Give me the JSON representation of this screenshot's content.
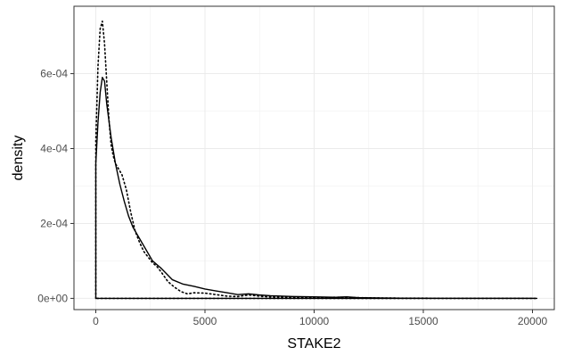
{
  "chart_data": {
    "type": "line",
    "title": "",
    "xlabel": "STAKE2",
    "ylabel": "density",
    "xlim": [
      -1000,
      21000
    ],
    "ylim": [
      -3e-05,
      0.00078
    ],
    "grid": true,
    "x_ticks": [
      0,
      5000,
      10000,
      15000,
      20000
    ],
    "x_tick_labels": [
      "0",
      "5000",
      "10000",
      "15000",
      "20000"
    ],
    "y_ticks": [
      0,
      0.0002,
      0.0004,
      0.0006
    ],
    "y_tick_labels": [
      "0e+00",
      "2e-04",
      "4e-04",
      "6e-04"
    ],
    "series": [
      {
        "style": "solid",
        "color": "#000000",
        "x": [
          0,
          0,
          100,
          200,
          300,
          400,
          500,
          700,
          900,
          1100,
          1300,
          1500,
          1700,
          2000,
          2300,
          2600,
          3000,
          3500,
          4000,
          4500,
          5000,
          5500,
          6000,
          6500,
          7000,
          7200,
          7500,
          8000,
          9000,
          10000,
          11000,
          11500,
          12000,
          13000,
          14000,
          16000,
          18000,
          20000,
          20200,
          20200,
          0
        ],
        "y": [
          0,
          0.00036,
          0.00047,
          0.00055,
          0.00059,
          0.00058,
          0.00052,
          0.00043,
          0.00036,
          0.000305,
          0.00026,
          0.00022,
          0.00019,
          0.00016,
          0.00013,
          0.0001,
          8e-05,
          5e-05,
          3.8e-05,
          3.2e-05,
          2.5e-05,
          2e-05,
          1.5e-05,
          1e-05,
          1.2e-05,
          1.1e-05,
          9e-06,
          7e-06,
          5e-06,
          4e-06,
          3e-06,
          4e-06,
          2e-06,
          1e-06,
          5e-07,
          3e-07,
          2e-07,
          1e-07,
          0,
          0,
          0
        ]
      },
      {
        "style": "dotted",
        "color": "#000000",
        "x": [
          0,
          0,
          100,
          200,
          300,
          400,
          500,
          600,
          700,
          800,
          900,
          1000,
          1200,
          1400,
          1600,
          1800,
          2000,
          2200,
          2400,
          2600,
          2800,
          3000,
          3300,
          3600,
          3900,
          4200,
          4500,
          5000,
          5500,
          6000,
          6500,
          7000,
          7500,
          8000,
          9000,
          10000,
          11000,
          12000,
          13000,
          14000,
          16000,
          18000,
          20000,
          20200,
          20200,
          0
        ],
        "y": [
          0,
          0.00042,
          0.00062,
          0.00072,
          0.00074,
          0.00068,
          0.00058,
          0.00048,
          0.00041,
          0.00038,
          0.00036,
          0.00035,
          0.00033,
          0.00029,
          0.00023,
          0.00018,
          0.00015,
          0.000125,
          0.00011,
          9.5e-05,
          8.5e-05,
          7e-05,
          4.5e-05,
          3e-05,
          1.8e-05,
          1.2e-05,
          1.5e-05,
          1.4e-05,
          1e-05,
          6e-06,
          5e-06,
          9e-06,
          6e-06,
          4e-06,
          3e-06,
          2e-06,
          3e-06,
          2e-06,
          1e-06,
          6e-07,
          3e-07,
          2e-07,
          1e-07,
          0,
          0,
          0
        ]
      }
    ]
  }
}
